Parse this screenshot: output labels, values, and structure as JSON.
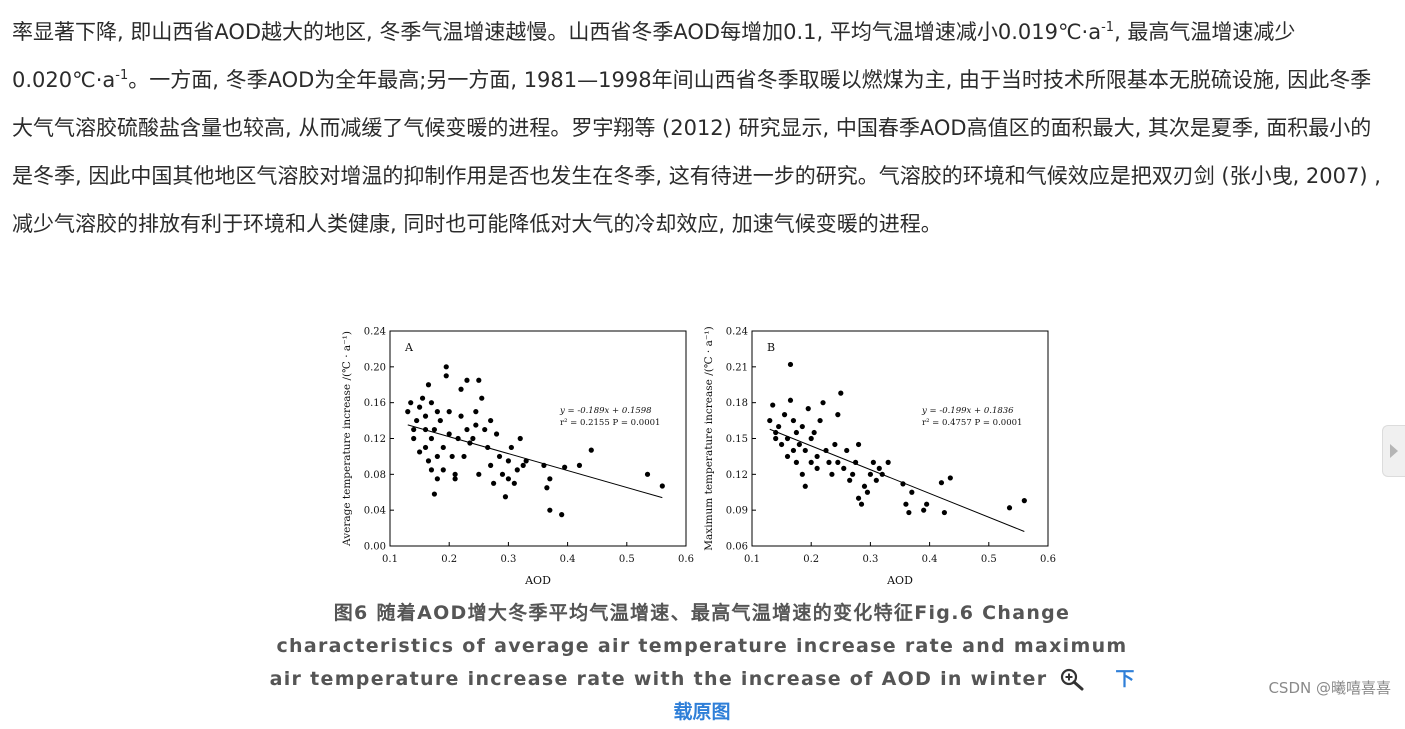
{
  "paragraph": {
    "part1": "率显著下降, 即山西省AOD越大的地区, 冬季气温增速越慢。山西省冬季AOD每增加0.1, 平均气温增速减小0.019℃·a",
    "sup1": "-1",
    "part2": ", 最高气温增速减少0.020℃·a",
    "sup2": "-1",
    "part3": "。一方面, 冬季AOD为全年最高;另一方面, 1981—1998年间山西省冬季取暖以燃煤为主, 由于当时技术所限基本无脱硫设施, 因此冬季大气气溶胶硫酸盐含量也较高, 从而减缓了气候变暖的进程。罗宇翔等 (2012) 研究显示, 中国春季AOD高值区的面积最大, 其次是夏季, 面积最小的是冬季, 因此中国其他地区气溶胶对增温的抑制作用是否也发生在冬季, 这有待进一步的研究。气溶胶的环境和气候效应是把双刃剑 (张小曳, 2007) , 减少气溶胶的排放有利于环境和人类健康, 同时也可能降低对大气的冷却效应, 加速气候变暖的进程。"
  },
  "caption": {
    "text": "图6 随着AOD增大冬季平均气温增速、最高气温增速的变化特征Fig.6 Change characteristics of average air temperature increase rate and maximum air temperature increase rate with the increase of AOD in winter",
    "download_label": "下载原图",
    "zoom_icon": "zoom-in-icon"
  },
  "watermark": "CSDN @曦嘻喜喜",
  "chart_data": [
    {
      "type": "scatter",
      "panel": "A",
      "xlabel": "AOD",
      "ylabel": "Average temperature increase /(℃ · a⁻¹)",
      "xlim": [
        0.1,
        0.6
      ],
      "ylim": [
        0.0,
        0.24
      ],
      "xticks": [
        "0.1",
        "0.2",
        "0.3",
        "0.4",
        "0.5",
        "0.6"
      ],
      "yticks": [
        "0.00",
        "0.04",
        "0.08",
        "0.12",
        "0.16",
        "0.20",
        "0.24"
      ],
      "equation": "y = -0.189x + 0.1598",
      "stats": "r² = 0.2155 P = 0.0001",
      "fit": {
        "slope": -0.189,
        "intercept": 0.1598,
        "x_range": [
          0.13,
          0.56
        ]
      },
      "points": [
        [
          0.13,
          0.15
        ],
        [
          0.135,
          0.16
        ],
        [
          0.14,
          0.13
        ],
        [
          0.14,
          0.12
        ],
        [
          0.145,
          0.14
        ],
        [
          0.15,
          0.105
        ],
        [
          0.15,
          0.155
        ],
        [
          0.155,
          0.165
        ],
        [
          0.16,
          0.11
        ],
        [
          0.16,
          0.13
        ],
        [
          0.16,
          0.145
        ],
        [
          0.165,
          0.18
        ],
        [
          0.165,
          0.095
        ],
        [
          0.17,
          0.085
        ],
        [
          0.17,
          0.12
        ],
        [
          0.17,
          0.16
        ],
        [
          0.175,
          0.058
        ],
        [
          0.175,
          0.13
        ],
        [
          0.18,
          0.075
        ],
        [
          0.18,
          0.1
        ],
        [
          0.18,
          0.15
        ],
        [
          0.185,
          0.14
        ],
        [
          0.19,
          0.085
        ],
        [
          0.19,
          0.11
        ],
        [
          0.195,
          0.2
        ],
        [
          0.195,
          0.19
        ],
        [
          0.2,
          0.125
        ],
        [
          0.2,
          0.15
        ],
        [
          0.205,
          0.1
        ],
        [
          0.21,
          0.075
        ],
        [
          0.21,
          0.08
        ],
        [
          0.215,
          0.12
        ],
        [
          0.22,
          0.175
        ],
        [
          0.22,
          0.145
        ],
        [
          0.225,
          0.1
        ],
        [
          0.23,
          0.185
        ],
        [
          0.23,
          0.13
        ],
        [
          0.235,
          0.115
        ],
        [
          0.24,
          0.12
        ],
        [
          0.245,
          0.15
        ],
        [
          0.245,
          0.135
        ],
        [
          0.25,
          0.185
        ],
        [
          0.25,
          0.08
        ],
        [
          0.255,
          0.165
        ],
        [
          0.26,
          0.13
        ],
        [
          0.265,
          0.11
        ],
        [
          0.27,
          0.14
        ],
        [
          0.27,
          0.09
        ],
        [
          0.275,
          0.07
        ],
        [
          0.28,
          0.125
        ],
        [
          0.285,
          0.1
        ],
        [
          0.29,
          0.08
        ],
        [
          0.295,
          0.055
        ],
        [
          0.3,
          0.075
        ],
        [
          0.3,
          0.095
        ],
        [
          0.305,
          0.11
        ],
        [
          0.31,
          0.07
        ],
        [
          0.315,
          0.085
        ],
        [
          0.32,
          0.12
        ],
        [
          0.325,
          0.09
        ],
        [
          0.33,
          0.095
        ],
        [
          0.36,
          0.09
        ],
        [
          0.365,
          0.065
        ],
        [
          0.37,
          0.075
        ],
        [
          0.37,
          0.04
        ],
        [
          0.39,
          0.035
        ],
        [
          0.395,
          0.088
        ],
        [
          0.42,
          0.09
        ],
        [
          0.44,
          0.107
        ],
        [
          0.535,
          0.08
        ],
        [
          0.56,
          0.067
        ]
      ]
    },
    {
      "type": "scatter",
      "panel": "B",
      "xlabel": "AOD",
      "ylabel": "Maximum temperature increase /(℃ · a⁻¹)",
      "xlim": [
        0.1,
        0.6
      ],
      "ylim": [
        0.06,
        0.24
      ],
      "xticks": [
        "0.1",
        "0.2",
        "0.3",
        "0.4",
        "0.5",
        "0.6"
      ],
      "yticks": [
        "0.06",
        "0.09",
        "0.12",
        "0.15",
        "0.18",
        "0.21",
        "0.24"
      ],
      "equation": "y = -0.199x + 0.1836",
      "stats": "r² = 0.4757 P = 0.0001",
      "fit": {
        "slope": -0.199,
        "intercept": 0.1836,
        "x_range": [
          0.13,
          0.56
        ]
      },
      "points": [
        [
          0.13,
          0.165
        ],
        [
          0.135,
          0.178
        ],
        [
          0.14,
          0.15
        ],
        [
          0.14,
          0.155
        ],
        [
          0.145,
          0.16
        ],
        [
          0.15,
          0.145
        ],
        [
          0.155,
          0.17
        ],
        [
          0.16,
          0.135
        ],
        [
          0.16,
          0.15
        ],
        [
          0.165,
          0.182
        ],
        [
          0.165,
          0.212
        ],
        [
          0.17,
          0.14
        ],
        [
          0.17,
          0.165
        ],
        [
          0.175,
          0.13
        ],
        [
          0.175,
          0.155
        ],
        [
          0.18,
          0.145
        ],
        [
          0.185,
          0.12
        ],
        [
          0.185,
          0.16
        ],
        [
          0.19,
          0.11
        ],
        [
          0.19,
          0.14
        ],
        [
          0.195,
          0.175
        ],
        [
          0.2,
          0.15
        ],
        [
          0.2,
          0.13
        ],
        [
          0.205,
          0.155
        ],
        [
          0.21,
          0.135
        ],
        [
          0.21,
          0.125
        ],
        [
          0.215,
          0.165
        ],
        [
          0.22,
          0.18
        ],
        [
          0.225,
          0.14
        ],
        [
          0.23,
          0.13
        ],
        [
          0.235,
          0.12
        ],
        [
          0.24,
          0.145
        ],
        [
          0.245,
          0.17
        ],
        [
          0.245,
          0.13
        ],
        [
          0.25,
          0.188
        ],
        [
          0.255,
          0.125
        ],
        [
          0.26,
          0.14
        ],
        [
          0.265,
          0.115
        ],
        [
          0.27,
          0.12
        ],
        [
          0.275,
          0.13
        ],
        [
          0.28,
          0.145
        ],
        [
          0.28,
          0.1
        ],
        [
          0.285,
          0.095
        ],
        [
          0.29,
          0.11
        ],
        [
          0.295,
          0.105
        ],
        [
          0.3,
          0.12
        ],
        [
          0.305,
          0.13
        ],
        [
          0.31,
          0.115
        ],
        [
          0.315,
          0.125
        ],
        [
          0.32,
          0.12
        ],
        [
          0.33,
          0.13
        ],
        [
          0.355,
          0.112
        ],
        [
          0.36,
          0.095
        ],
        [
          0.365,
          0.088
        ],
        [
          0.37,
          0.105
        ],
        [
          0.39,
          0.09
        ],
        [
          0.395,
          0.095
        ],
        [
          0.42,
          0.113
        ],
        [
          0.425,
          0.088
        ],
        [
          0.435,
          0.117
        ],
        [
          0.535,
          0.092
        ],
        [
          0.56,
          0.098
        ]
      ]
    }
  ]
}
